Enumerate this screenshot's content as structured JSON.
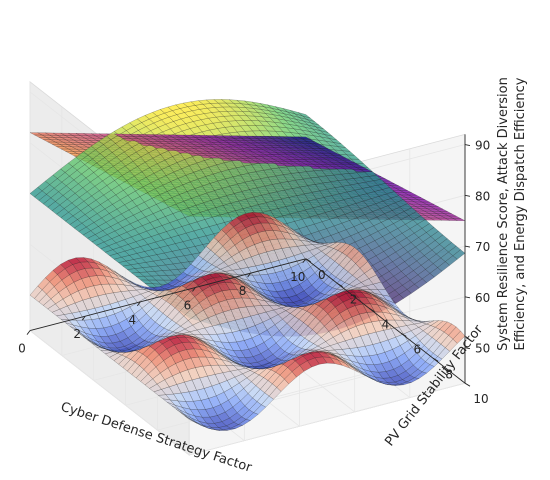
{
  "chart_data": {
    "type": "surface3d",
    "title": "",
    "xlabel": "Cyber Defense Strategy Factor",
    "ylabel": "PV Grid Stability Factor",
    "zlabel_lines": [
      "System Resilience Score, Attack Diversion",
      "Efficiency, and Energy Dispatch Efficiency"
    ],
    "xlim": [
      0,
      10
    ],
    "ylim": [
      0,
      10
    ],
    "zlim": [
      43,
      92
    ],
    "x_ticks": [
      0,
      2,
      4,
      6,
      8,
      10
    ],
    "y_ticks": [
      0,
      2,
      4,
      6,
      8,
      10
    ],
    "z_ticks": [
      50,
      60,
      70,
      80,
      90
    ],
    "grid": true,
    "series": [
      {
        "colormap": "coolwarm",
        "form": "z = 50 + 5*sin(x)*cos(y)",
        "x_range": [
          0,
          10
        ],
        "y_range": [
          0,
          10
        ],
        "samples": 36,
        "z_min": 45,
        "z_max": 55
      },
      {
        "colormap": "viridis",
        "form": "z = 70 + 10*sin(0.3*x)*cos(0.3*y)",
        "x_range": [
          0,
          10
        ],
        "y_range": [
          0,
          10
        ],
        "samples": 36,
        "z_min": 60,
        "z_max": 80
      },
      {
        "colormap": "plasma",
        "form": "z = 82 - 1.5*x + 0.8*y",
        "x_range": [
          0,
          10
        ],
        "y_range": [
          0,
          10
        ],
        "samples": 36,
        "z_min": 67,
        "z_max": 90
      }
    ]
  }
}
